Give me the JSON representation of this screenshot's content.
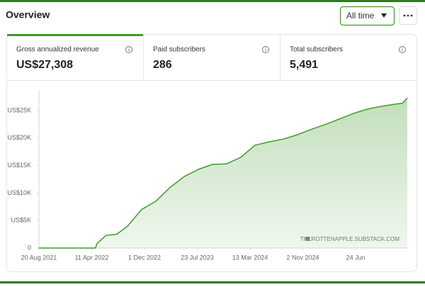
{
  "header": {
    "title": "Overview",
    "filter": "All time"
  },
  "metrics": [
    {
      "label": "Gross annualized revenue",
      "value": "US$27,308"
    },
    {
      "label": "Paid subscribers",
      "value": "286"
    },
    {
      "label": "Total subscribers",
      "value": "5,491"
    }
  ],
  "chart": {
    "type": "line",
    "color": "#3f9a2a",
    "area": true,
    "grid": false,
    "watermark": "THEROTTENAPPLE.SUBSTACK.COM",
    "x": [
      "2021-08-20",
      "2022-04-28",
      "2022-05-04",
      "2022-06-14",
      "2022-07-31",
      "2022-09-17",
      "2022-11-18",
      "2023-01-20",
      "2023-03-24",
      "2023-05-26",
      "2023-07-28",
      "2023-09-28",
      "2023-11-30",
      "2024-02-01",
      "2024-04-04",
      "2024-06-06",
      "2024-08-07",
      "2024-10-09",
      "2024-12-11",
      "2025-02-12",
      "2025-04-16",
      "2025-06-17",
      "2025-08-19",
      "2025-10-21",
      "2025-12-23",
      "2026-01-17",
      "2026-02-08"
    ],
    "values": [
      0,
      0,
      800,
      2300,
      2500,
      4000,
      7000,
      8500,
      11000,
      13000,
      14300,
      15200,
      15300,
      16500,
      18700,
      19300,
      19800,
      20600,
      21600,
      22500,
      23500,
      24500,
      25300,
      25800,
      26200,
      26300,
      27308
    ],
    "xlim": [
      "2021-08-20",
      "2026-02-08"
    ],
    "ylim": [
      0,
      28600
    ],
    "xticks": [
      {
        "value": "2021-08-20",
        "label": "20 Aug 2021"
      },
      {
        "value": "2022-04-11",
        "label": "11 Apr 2022"
      },
      {
        "value": "2022-12-01",
        "label": "1 Dec 2022"
      },
      {
        "value": "2023-07-23",
        "label": "23 Jul 2023"
      },
      {
        "value": "2024-03-13",
        "label": "13 Mar 2024"
      },
      {
        "value": "2024-11-02",
        "label": "2 Nov 2024"
      },
      {
        "value": "2025-06-24",
        "label": "24 Jun"
      }
    ],
    "yticks": [
      0,
      {
        "value": 5000,
        "label": "US$5K"
      },
      {
        "value": 10000,
        "label": "US$10K"
      },
      {
        "value": 15000,
        "label": "US$15K"
      },
      {
        "value": 20000,
        "label": "US$20K"
      },
      {
        "value": 25000,
        "label": "US$25K"
      }
    ]
  }
}
